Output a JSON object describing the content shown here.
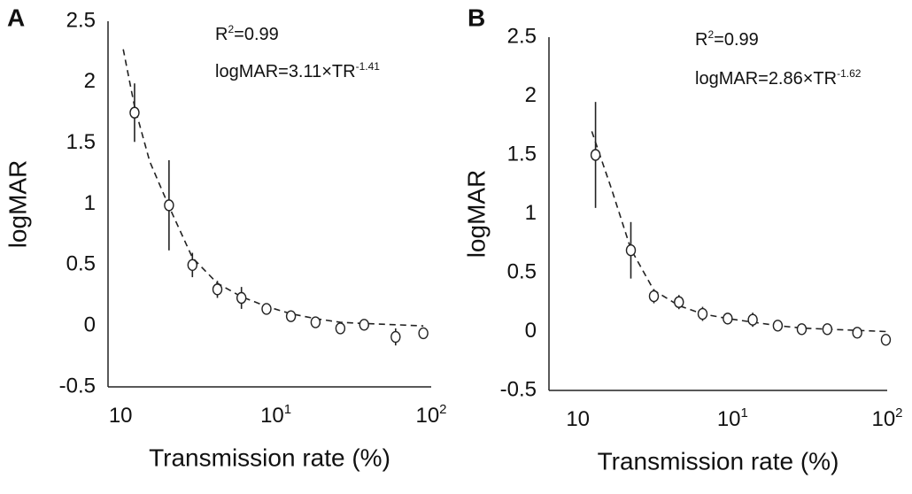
{
  "chart_data": [
    {
      "type": "scatter",
      "panel": "A",
      "xlabel": "Transmission rate (%)",
      "ylabel": "logMAR",
      "xscale": "log",
      "xlim": [
        0.83,
        100
      ],
      "ylim": [
        -0.5,
        2.5
      ],
      "xticks": [
        {
          "value": 1,
          "label": "10"
        },
        {
          "value": 10,
          "label": "10",
          "sup": "1"
        },
        {
          "value": 100,
          "label": "10",
          "sup": "2"
        }
      ],
      "yticks": [
        2.5,
        2,
        1.5,
        1,
        0.5,
        0,
        -0.5
      ],
      "color": "#222222",
      "annotations": [
        [
          {
            "text": "R"
          },
          {
            "sup": "2"
          },
          {
            "text": "=0.99"
          }
        ],
        [
          {
            "text": "logMAR=3.11×TR"
          },
          {
            "sup": "-1.41"
          }
        ]
      ],
      "points": {
        "x": [
          1.23,
          2.05,
          2.9,
          4.2,
          6,
          8.7,
          12.5,
          18,
          26,
          37,
          59,
          89
        ],
        "values": [
          1.75,
          0.99,
          0.5,
          0.3,
          0.23,
          0.14,
          0.08,
          0.03,
          -0.02,
          0.01,
          -0.09,
          -0.06
        ],
        "errors": [
          0.24,
          0.37,
          0.1,
          0.07,
          0.09,
          0.03,
          0.03,
          0.02,
          0.04,
          0.03,
          0.07,
          0.03
        ]
      },
      "fit": {
        "x": [
          1.04,
          1.23,
          1.54,
          2.05,
          2.9,
          4.2,
          6,
          8.7,
          12.5,
          18,
          26,
          37,
          59,
          89
        ],
        "values": [
          2.27,
          1.8,
          1.35,
          0.98,
          0.56,
          0.35,
          0.24,
          0.16,
          0.1,
          0.06,
          0.03,
          0.02,
          0.01,
          0.0
        ]
      }
    },
    {
      "type": "scatter",
      "panel": "B",
      "xlabel": "Transmission rate (%)",
      "ylabel": "logMAR",
      "xscale": "log",
      "xlim": [
        0.65,
        100
      ],
      "ylim": [
        -0.5,
        2.5
      ],
      "xticks": [
        {
          "value": 1,
          "label": "10"
        },
        {
          "value": 10,
          "label": "10",
          "sup": "1"
        },
        {
          "value": 100,
          "label": "10",
          "sup": "2"
        }
      ],
      "yticks": [
        2.5,
        2,
        1.5,
        1,
        0.5,
        0,
        -0.5
      ],
      "color": "#222222",
      "annotations": [
        [
          {
            "text": "R"
          },
          {
            "sup": "2"
          },
          {
            "text": "=0.99"
          }
        ],
        [
          {
            "text": "logMAR=2.86×TR"
          },
          {
            "sup": "-1.62"
          }
        ]
      ],
      "points": {
        "x": [
          1.3,
          2.2,
          3.1,
          4.5,
          6.4,
          9.3,
          13.5,
          19.6,
          28,
          41,
          64,
          98
        ],
        "values": [
          1.5,
          0.69,
          0.3,
          0.25,
          0.15,
          0.11,
          0.1,
          0.05,
          0.02,
          0.02,
          -0.01,
          -0.07
        ],
        "errors": [
          0.45,
          0.24,
          0.06,
          0.06,
          0.06,
          0.04,
          0.06,
          0.03,
          0.02,
          0.02,
          0.02,
          0.04
        ]
      },
      "fit": {
        "x": [
          1.23,
          1.66,
          2.2,
          3.1,
          4.5,
          6.4,
          9.3,
          13.5,
          19.6,
          28,
          41,
          64,
          98
        ],
        "values": [
          1.7,
          1.2,
          0.7,
          0.35,
          0.22,
          0.15,
          0.11,
          0.08,
          0.05,
          0.03,
          0.02,
          0.01,
          0.0
        ]
      }
    }
  ]
}
